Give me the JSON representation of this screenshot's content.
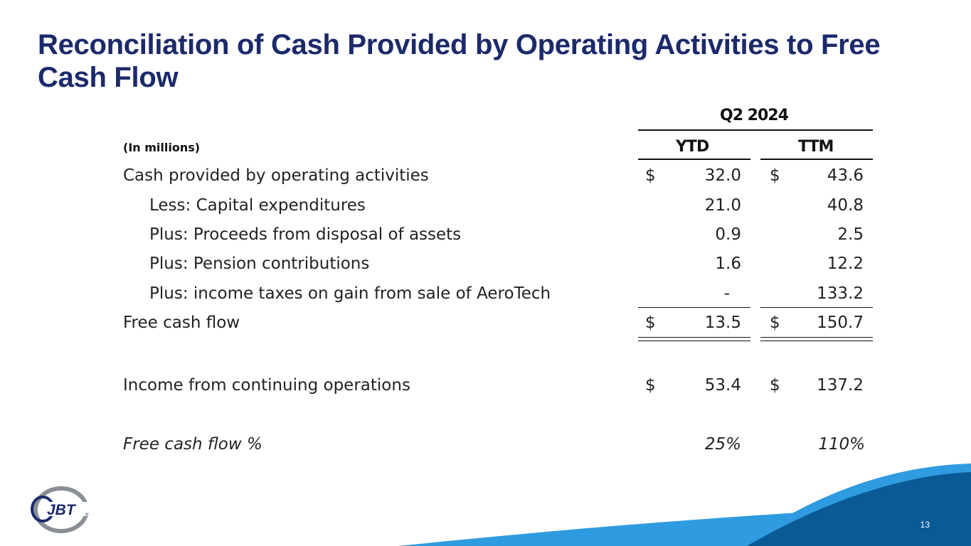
{
  "slide": {
    "title": "Reconciliation of Cash Provided by Operating Activities to Free Cash Flow",
    "page_number": "13",
    "logo_text": "JBT"
  },
  "table": {
    "period_header": "Q2 2024",
    "units_label": "(In millions)",
    "columns": [
      "YTD",
      "TTM"
    ],
    "currency": "$",
    "rows": [
      {
        "label": "Cash provided by operating activities",
        "ytd": "32.0",
        "ttm": "43.6"
      },
      {
        "label": "Less: Capital expenditures",
        "ytd": "21.0",
        "ttm": "40.8"
      },
      {
        "label": "Plus: Proceeds from disposal of assets",
        "ytd": "0.9",
        "ttm": "2.5"
      },
      {
        "label": "Plus: Pension contributions",
        "ytd": "1.6",
        "ttm": "12.2"
      },
      {
        "label": "Plus: income taxes on gain from sale of AeroTech",
        "ytd": "-",
        "ttm": "133.2"
      },
      {
        "label": "Free cash flow",
        "ytd": "13.5",
        "ttm": "150.7"
      },
      {
        "label": "Income from continuing operations",
        "ytd": "53.4",
        "ttm": "137.2"
      },
      {
        "label": "Free cash flow %",
        "ytd": "25%",
        "ttm": "110%"
      }
    ]
  },
  "colors": {
    "title": "#1b2a6b",
    "wave_dark": "#0a5a96",
    "wave_light": "#2f9be0"
  }
}
